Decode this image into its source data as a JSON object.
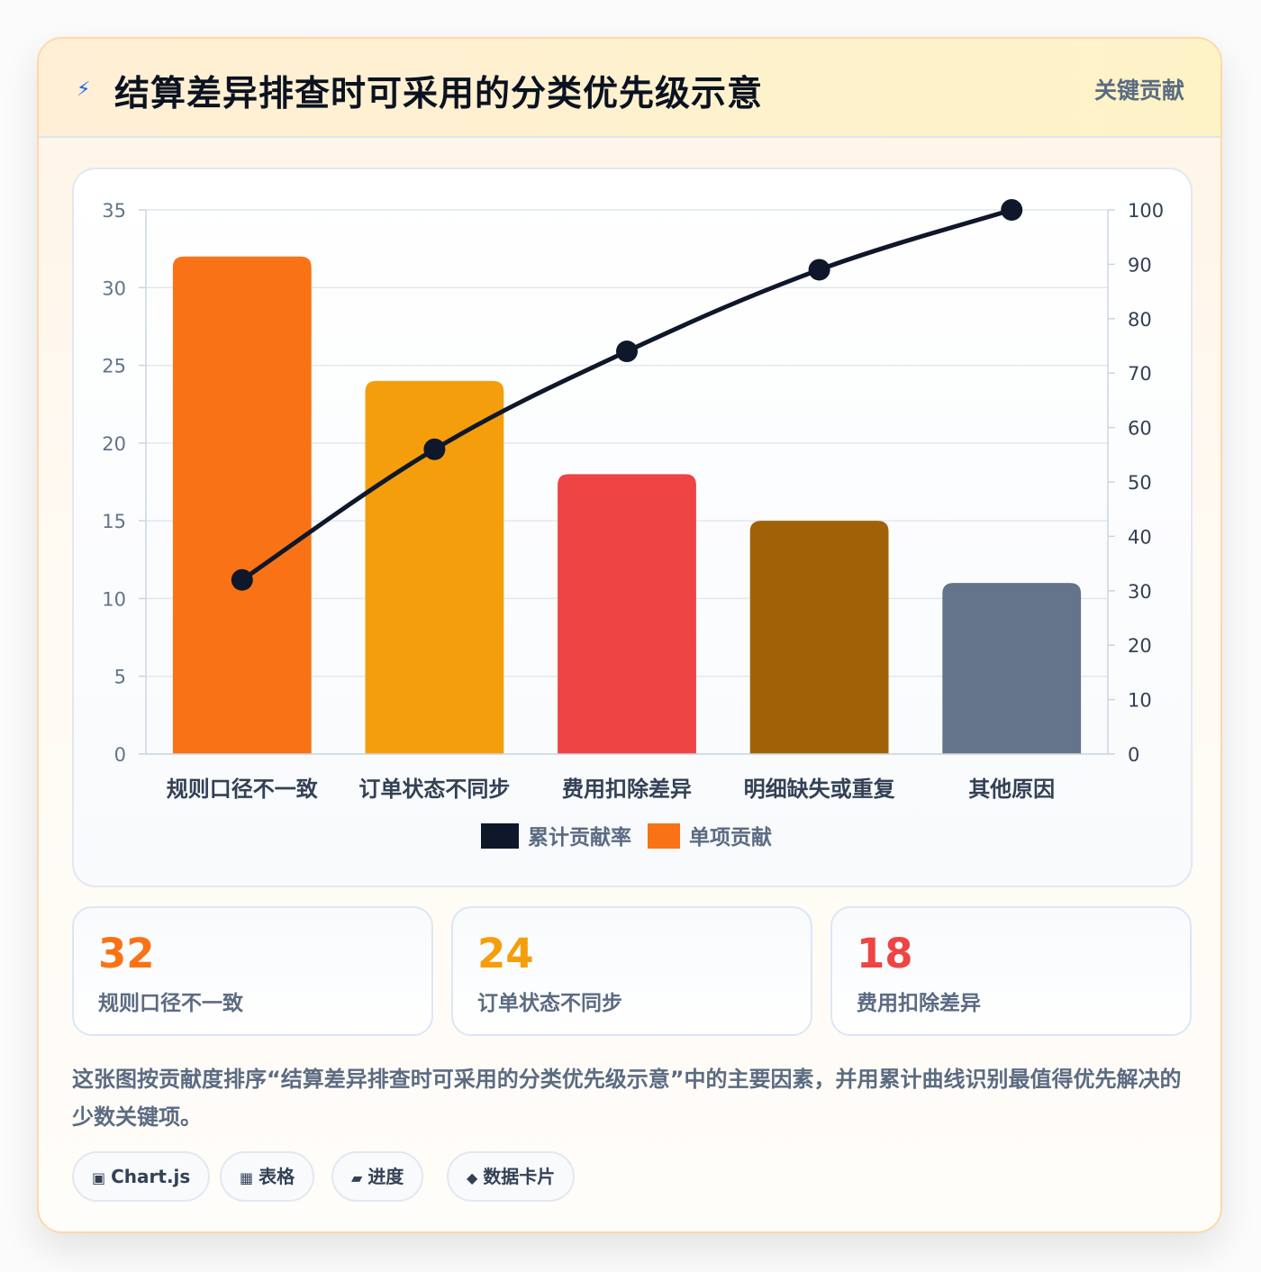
{
  "header": {
    "title": "结算差异排查时可采用的分类优先级示意",
    "icon": "lightning-icon",
    "tag": "关键贡献"
  },
  "chart_data": {
    "type": "bar",
    "categories": [
      "规则口径不一致",
      "订单状态不同步",
      "费用扣除差异",
      "明细缺失或重复",
      "其他原因"
    ],
    "series": [
      {
        "name": "单项贡献",
        "type": "bar",
        "axis": "left",
        "values": [
          32,
          24,
          18,
          15,
          11
        ],
        "colors": [
          "#f97316",
          "#f59e0b",
          "#ef4444",
          "#a16207",
          "#64748b"
        ]
      },
      {
        "name": "累计贡献率",
        "type": "line",
        "axis": "right",
        "values": [
          32,
          56,
          74,
          89,
          100
        ],
        "color": "#0f172a"
      }
    ],
    "y_left": {
      "min": 0,
      "max": 35,
      "ticks": [
        "0",
        "5",
        "10",
        "15",
        "20",
        "25",
        "30",
        "35"
      ]
    },
    "y_right": {
      "min": 0,
      "max": 100,
      "ticks": [
        "0",
        "10",
        "20",
        "30",
        "40",
        "50",
        "60",
        "70",
        "80",
        "90",
        "100"
      ]
    },
    "legend": [
      {
        "label": "累计贡献率",
        "color": "#0f172a"
      },
      {
        "label": "单项贡献",
        "color": "#f97316"
      }
    ],
    "legend_position": "bottom",
    "grid": true
  },
  "stats": [
    {
      "value": "32",
      "label": "规则口径不一致",
      "color": "#f97316"
    },
    {
      "value": "24",
      "label": "订单状态不同步",
      "color": "#f59e0b"
    },
    {
      "value": "18",
      "label": "费用扣除差异",
      "color": "#ef4444"
    }
  ],
  "description": "这张图按贡献度排序“结算差异排查时可采用的分类优先级示意”中的主要因素，并用累计曲线识别最值得优先解决的少数关键项。",
  "pills": [
    {
      "icon": "▣",
      "label": "Chart.js"
    },
    {
      "icon": "▦",
      "label": "表格"
    },
    {
      "icon": "▰",
      "label": "进度"
    },
    {
      "icon": "◆",
      "label": "数据卡片"
    }
  ]
}
